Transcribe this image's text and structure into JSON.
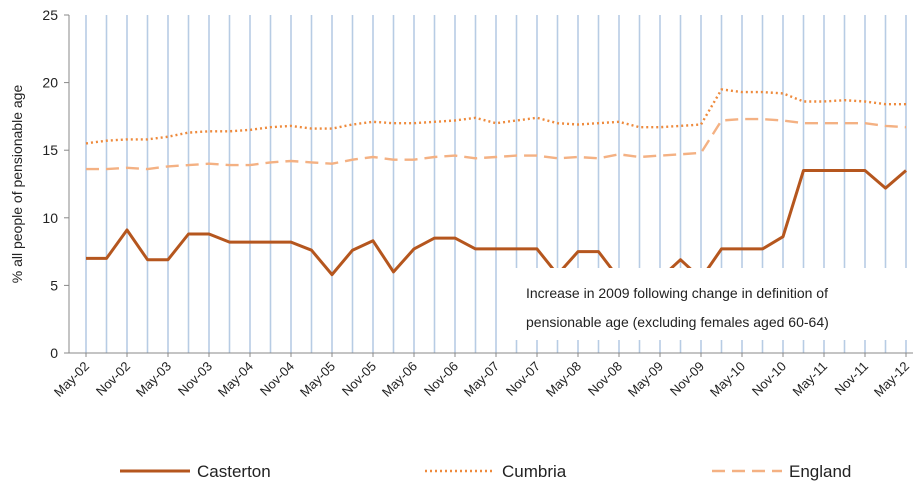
{
  "chart_data": {
    "type": "line",
    "title": "",
    "xlabel": "",
    "ylabel": "% all people of pensionable age",
    "ylim": [
      0,
      25
    ],
    "yticks": [
      0,
      5,
      10,
      15,
      20,
      25
    ],
    "grid": "vertical",
    "legend_placement": "bottom",
    "x_tick_labels": [
      "May-02",
      "Nov-02",
      "May-03",
      "Nov-03",
      "May-04",
      "Nov-04",
      "May-05",
      "Nov-05",
      "May-06",
      "Nov-06",
      "May-07",
      "Nov-07",
      "May-08",
      "Nov-08",
      "May-09",
      "Nov-09",
      "May-10",
      "Nov-10",
      "May-11",
      "Nov-11",
      "May-12"
    ],
    "x": [
      "May-02",
      "Aug-02",
      "Nov-02",
      "Feb-03",
      "May-03",
      "Aug-03",
      "Nov-03",
      "Feb-04",
      "May-04",
      "Aug-04",
      "Nov-04",
      "Feb-05",
      "May-05",
      "Aug-05",
      "Nov-05",
      "Feb-06",
      "May-06",
      "Aug-06",
      "Nov-06",
      "Feb-07",
      "May-07",
      "Aug-07",
      "Nov-07",
      "Feb-08",
      "May-08",
      "Aug-08",
      "Nov-08",
      "Feb-09",
      "May-09",
      "Aug-09",
      "Nov-09",
      "Feb-10",
      "May-10",
      "Aug-10",
      "Nov-10",
      "Feb-11",
      "May-11",
      "Aug-11",
      "Nov-11",
      "Feb-12",
      "May-12"
    ],
    "series": [
      {
        "name": "Casterton",
        "color": "#b5561e",
        "style": "solid",
        "values": [
          7.0,
          7.0,
          9.1,
          6.9,
          6.9,
          8.8,
          8.8,
          8.2,
          8.2,
          8.2,
          8.2,
          7.6,
          5.8,
          7.6,
          8.3,
          6.0,
          7.7,
          8.5,
          8.5,
          7.7,
          7.7,
          7.7,
          7.7,
          5.8,
          7.5,
          7.5,
          5.5,
          5.5,
          5.5,
          6.9,
          5.5,
          7.7,
          7.7,
          7.7,
          8.6,
          13.5,
          13.5,
          13.5,
          13.5,
          12.2,
          13.5
        ]
      },
      {
        "name": "Cumbria",
        "color": "#ee8a3c",
        "style": "dotted",
        "values": [
          15.5,
          15.7,
          15.8,
          15.8,
          16.0,
          16.3,
          16.4,
          16.4,
          16.5,
          16.7,
          16.8,
          16.6,
          16.6,
          16.9,
          17.1,
          17.0,
          17.0,
          17.1,
          17.2,
          17.4,
          17.0,
          17.2,
          17.4,
          17.0,
          16.9,
          17.0,
          17.1,
          16.7,
          16.7,
          16.8,
          16.9,
          19.5,
          19.3,
          19.3,
          19.2,
          18.6,
          18.6,
          18.7,
          18.6,
          18.4,
          18.4
        ]
      },
      {
        "name": "England",
        "color": "#f4b183",
        "style": "dashed",
        "values": [
          13.6,
          13.6,
          13.7,
          13.6,
          13.8,
          13.9,
          14.0,
          13.9,
          13.9,
          14.1,
          14.2,
          14.1,
          14.0,
          14.3,
          14.5,
          14.3,
          14.3,
          14.5,
          14.6,
          14.4,
          14.5,
          14.6,
          14.6,
          14.4,
          14.5,
          14.4,
          14.7,
          14.5,
          14.6,
          14.7,
          14.8,
          17.2,
          17.3,
          17.3,
          17.2,
          17.0,
          17.0,
          17.0,
          17.0,
          16.8,
          16.7
        ]
      }
    ],
    "annotation": {
      "line1": "Increase in 2009 following change in definition of",
      "line2": "pensionable age (excluding females aged 60-64)"
    }
  }
}
